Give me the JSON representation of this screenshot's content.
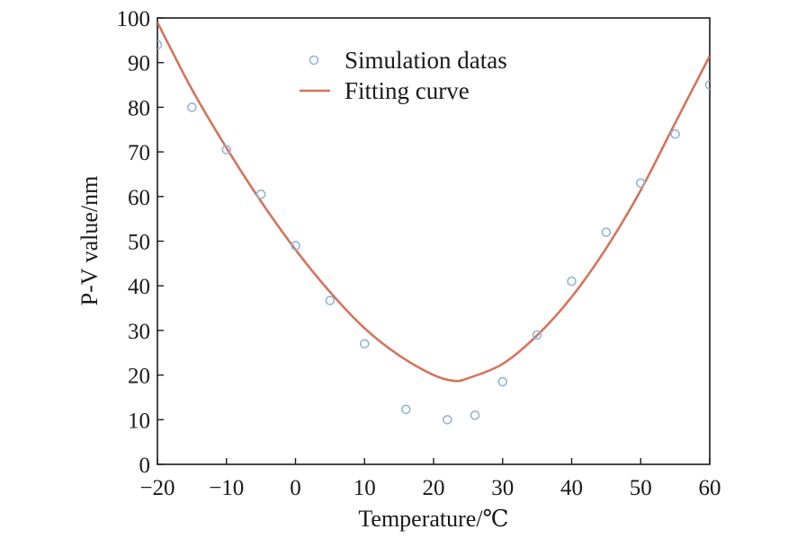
{
  "chart_data": {
    "type": "scatter",
    "xlabel": "Temperature/℃",
    "ylabel": "P-V value/nm",
    "xlim": [
      -20,
      60
    ],
    "ylim": [
      0,
      100
    ],
    "xticks": [
      -20,
      -10,
      0,
      10,
      20,
      30,
      40,
      50,
      60
    ],
    "yticks": [
      0,
      10,
      20,
      30,
      40,
      50,
      60,
      70,
      80,
      90,
      100
    ],
    "xtick_labels": [
      "−20",
      "−10",
      "0",
      "10",
      "20",
      "30",
      "40",
      "50",
      "60"
    ],
    "ytick_labels": [
      "0",
      "10",
      "20",
      "30",
      "40",
      "50",
      "60",
      "70",
      "80",
      "90",
      "100"
    ],
    "grid": false,
    "legend_position": "top-center",
    "series": [
      {
        "name": "Simulation datas",
        "kind": "markers",
        "color": "#8fb8d9",
        "x": [
          -20,
          -15,
          -10,
          -5,
          0,
          5,
          10,
          16,
          22,
          26,
          30,
          35,
          40,
          45,
          50,
          55,
          60
        ],
        "y": [
          94,
          80,
          70.5,
          60.5,
          49,
          36.7,
          27,
          12.3,
          10,
          11,
          18.5,
          29,
          41,
          52,
          63,
          74,
          85
        ]
      },
      {
        "name": "Fitting curve",
        "kind": "line",
        "color": "#d4745c",
        "x": [
          -20,
          -15,
          -10,
          -5,
          0,
          5,
          10,
          15,
          20,
          23,
          25,
          30,
          35,
          40,
          45,
          50,
          55,
          60
        ],
        "y": [
          99,
          84,
          70.9,
          58.9,
          48.1,
          38.6,
          30.5,
          24.4,
          20,
          18.7,
          19.3,
          22.5,
          28.9,
          37.5,
          48.4,
          61.4,
          76.5,
          91.5
        ]
      }
    ]
  }
}
